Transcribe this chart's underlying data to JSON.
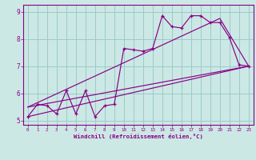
{
  "xlabel": "Windchill (Refroidissement éolien,°C)",
  "bg_color": "#cce8e4",
  "line_color": "#880088",
  "grid_color": "#99cccc",
  "ylim": [
    4.85,
    9.25
  ],
  "xlim": [
    -0.5,
    23.5
  ],
  "yticks": [
    5,
    6,
    7,
    8,
    9
  ],
  "xticks": [
    0,
    1,
    2,
    3,
    4,
    5,
    6,
    7,
    8,
    9,
    10,
    11,
    12,
    13,
    14,
    15,
    16,
    17,
    18,
    19,
    20,
    21,
    22,
    23
  ],
  "data_x": [
    0,
    1,
    2,
    3,
    4,
    5,
    6,
    7,
    8,
    9,
    10,
    11,
    12,
    13,
    14,
    15,
    16,
    17,
    18,
    19,
    20,
    21,
    22,
    23
  ],
  "data_y": [
    5.15,
    5.6,
    5.55,
    5.25,
    6.1,
    5.25,
    6.1,
    5.15,
    5.55,
    5.6,
    7.65,
    7.6,
    7.55,
    7.65,
    8.85,
    8.45,
    8.4,
    8.85,
    8.85,
    8.6,
    8.6,
    8.05,
    7.05,
    7.0
  ],
  "trend1_x": [
    0,
    23
  ],
  "trend1_y": [
    5.15,
    7.0
  ],
  "trend2_x": [
    0,
    23
  ],
  "trend2_y": [
    5.5,
    7.0
  ],
  "trend3_x": [
    0,
    20,
    23
  ],
  "trend3_y": [
    5.5,
    8.75,
    7.0
  ]
}
